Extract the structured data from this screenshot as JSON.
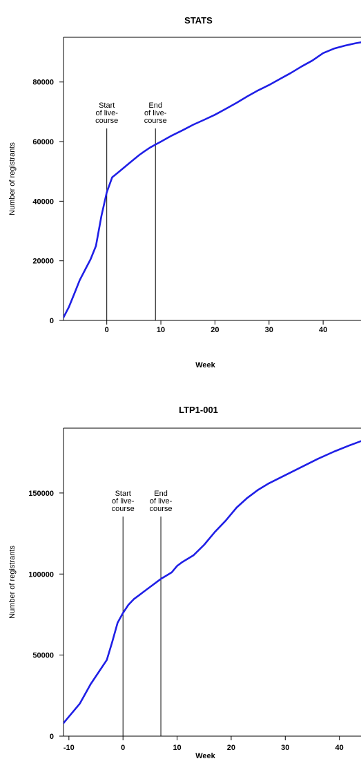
{
  "chart_data": [
    {
      "type": "line",
      "title": "STATS",
      "xlabel": "Week",
      "ylabel": "Number of registrants",
      "xlim": [
        -8,
        47
      ],
      "ylim": [
        0,
        95000
      ],
      "xticks": [
        0,
        10,
        20,
        30,
        40
      ],
      "yticks": [
        0,
        20000,
        40000,
        60000,
        80000
      ],
      "grid": false,
      "line_color": "#1f1fe6",
      "series": [
        {
          "x": [
            -8,
            -7,
            -6,
            -5,
            -4,
            -3,
            -2,
            -1,
            0,
            1,
            2,
            3,
            4,
            5,
            6,
            7,
            8,
            9,
            10,
            12,
            14,
            16,
            18,
            20,
            22,
            24,
            26,
            28,
            30,
            32,
            34,
            36,
            38,
            40,
            42,
            44,
            46,
            47
          ],
          "y": [
            1000,
            4500,
            9000,
            13500,
            17000,
            20500,
            25000,
            35000,
            43000,
            48000,
            49500,
            51000,
            52500,
            54000,
            55500,
            56800,
            58000,
            59000,
            60000,
            62000,
            63800,
            65700,
            67300,
            69000,
            71000,
            73000,
            75200,
            77200,
            79000,
            81000,
            83000,
            85200,
            87200,
            89700,
            91200,
            92200,
            93000,
            93300
          ]
        }
      ],
      "vlines": [
        {
          "x": 0,
          "label": [
            "Start",
            "of live-",
            "course"
          ]
        },
        {
          "x": 9,
          "label": [
            "End",
            "of live-",
            "course"
          ]
        }
      ]
    },
    {
      "type": "line",
      "title": "LTP1-001",
      "xlabel": "Week",
      "ylabel": "Number of registrants",
      "xlim": [
        -11,
        44
      ],
      "ylim": [
        0,
        190000
      ],
      "xticks": [
        -10,
        0,
        10,
        20,
        30,
        40
      ],
      "yticks": [
        0,
        50000,
        100000,
        150000
      ],
      "grid": false,
      "line_color": "#1f1fe6",
      "series": [
        {
          "x": [
            -11,
            -10,
            -8,
            -6,
            -4,
            -3,
            -2,
            -1,
            0,
            1,
            2,
            3,
            4,
            5,
            6,
            7,
            8,
            9,
            10,
            11,
            13,
            15,
            17,
            19,
            21,
            23,
            25,
            26,
            27,
            30,
            33,
            36,
            39,
            42,
            44
          ],
          "y": [
            8000,
            12000,
            20000,
            32000,
            42000,
            47000,
            58000,
            70000,
            76000,
            81000,
            84500,
            87000,
            89500,
            92000,
            94500,
            97000,
            99000,
            101000,
            105000,
            107500,
            111500,
            118000,
            126000,
            133000,
            141000,
            147000,
            152000,
            154000,
            156000,
            161000,
            166000,
            171000,
            175500,
            179500,
            182000
          ]
        }
      ],
      "vlines": [
        {
          "x": 0,
          "label": [
            "Start",
            "of live-",
            "course"
          ]
        },
        {
          "x": 7,
          "label": [
            "End",
            "of live-",
            "course"
          ]
        }
      ]
    }
  ]
}
